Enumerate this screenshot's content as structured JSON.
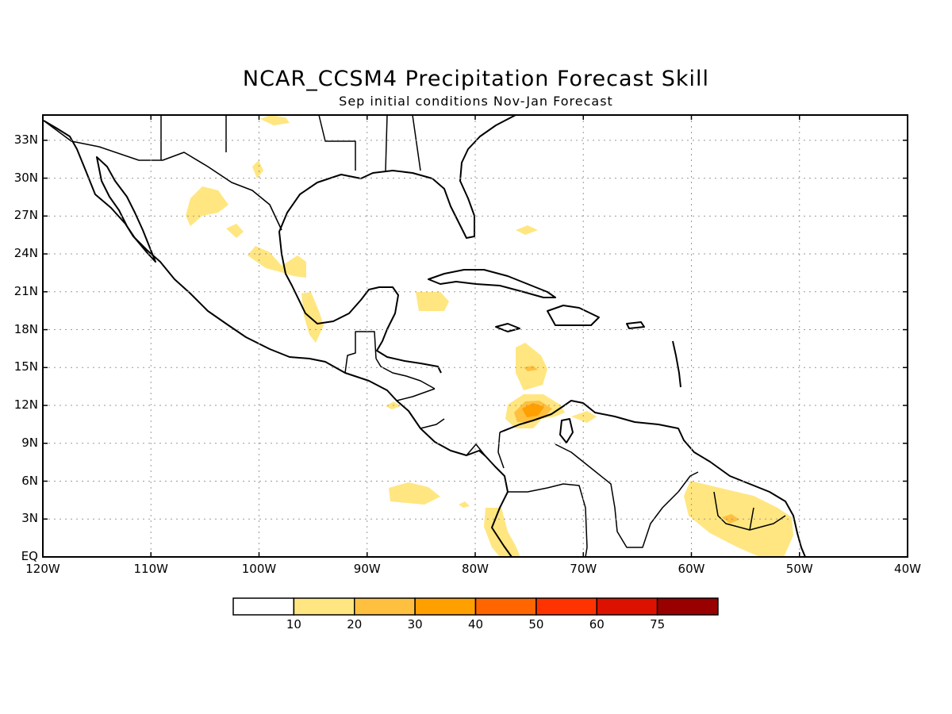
{
  "title": "NCAR_CCSM4 Precipitation Forecast Skill",
  "subtitle": "Sep initial conditions   Nov-Jan Forecast",
  "map": {
    "lat_labels": [
      "33N",
      "30N",
      "27N",
      "24N",
      "21N",
      "18N",
      "15N",
      "12N",
      "9N",
      "6N",
      "3N",
      "EQ"
    ],
    "lon_labels": [
      "120W",
      "110W",
      "100W",
      "90W",
      "80W",
      "70W",
      "60W",
      "50W",
      "40W"
    ],
    "lat_range": [
      0,
      35
    ],
    "lon_range": [
      -120,
      -40
    ],
    "grid": "dotted",
    "skill_regions": [
      {
        "name": "central-mexico-west",
        "level": 10
      },
      {
        "name": "nw-mexico-small",
        "level": 10
      },
      {
        "name": "texas-small",
        "level": 10
      },
      {
        "name": "mexico-gulf-coast",
        "level": 10
      },
      {
        "name": "yucatan-channel",
        "level": 10
      },
      {
        "name": "bahamas-small",
        "level": 10
      },
      {
        "name": "caribbean-north-colombia",
        "level": 20
      },
      {
        "name": "colombia-coast-core",
        "level": 30
      },
      {
        "name": "venezuela-coast",
        "level": 10
      },
      {
        "name": "eastern-pacific",
        "level": 10
      },
      {
        "name": "ecuador-coast",
        "level": 10
      },
      {
        "name": "guianas",
        "level": 10
      },
      {
        "name": "suriname-core",
        "level": 20
      }
    ]
  },
  "colorbar": {
    "labels": [
      "10",
      "20",
      "30",
      "40",
      "50",
      "60",
      "75"
    ],
    "colors": [
      "#ffffff",
      "#ffe680",
      "#ffbf3f",
      "#ff9f00",
      "#ff6600",
      "#ff3300",
      "#dd1100",
      "#990000"
    ]
  }
}
